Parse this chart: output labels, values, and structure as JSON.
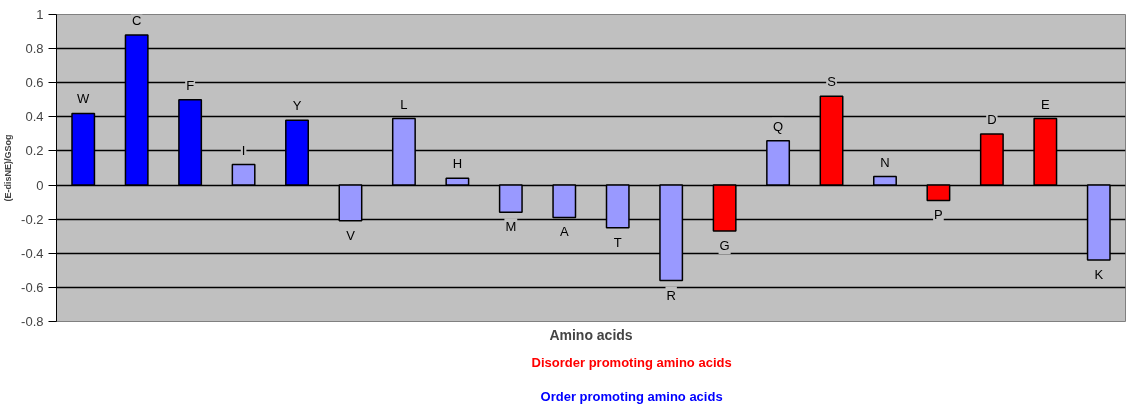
{
  "chart_data": {
    "type": "bar",
    "xlabel": "Amino acids",
    "ylabel": "(E-disNE)/GSog",
    "categories": [
      "W",
      "C",
      "F",
      "I",
      "Y",
      "V",
      "L",
      "H",
      "M",
      "A",
      "T",
      "R",
      "G",
      "Q",
      "S",
      "N",
      "P",
      "D",
      "E",
      "K"
    ],
    "series": [
      {
        "color": "#0000ff",
        "values": [
          0.42,
          0.88,
          0.5,
          null,
          0.38,
          null,
          null,
          null,
          null,
          null,
          null,
          null,
          null,
          null,
          null,
          null,
          null,
          null,
          null,
          null
        ]
      },
      {
        "color": "#9999ff",
        "values": [
          null,
          null,
          null,
          0.12,
          null,
          -0.21,
          0.39,
          0.04,
          -0.16,
          -0.19,
          -0.25,
          -0.56,
          null,
          0.26,
          null,
          0.05,
          null,
          null,
          null,
          -0.44
        ]
      },
      {
        "name": "Disorder promoting amino acids",
        "color": "#ff0000",
        "values": [
          null,
          null,
          null,
          null,
          null,
          null,
          null,
          null,
          null,
          null,
          null,
          null,
          -0.27,
          null,
          0.52,
          null,
          -0.09,
          0.3,
          0.39,
          null
        ]
      },
      {
        "name": "Order promoting amino acids",
        "color": "#0000ff",
        "values": [
          null,
          null,
          null,
          null,
          null,
          null,
          null,
          null,
          null,
          null,
          null,
          null,
          null,
          null,
          null,
          null,
          null,
          null,
          null,
          null
        ]
      }
    ],
    "ylim": [
      -0.8,
      1
    ],
    "yticks": [
      -0.8,
      -0.6,
      -0.4,
      -0.2,
      0,
      0.2,
      0.4,
      0.6,
      0.8,
      1
    ],
    "grid": "y",
    "legend": "bottom",
    "tick_labels": "y"
  }
}
